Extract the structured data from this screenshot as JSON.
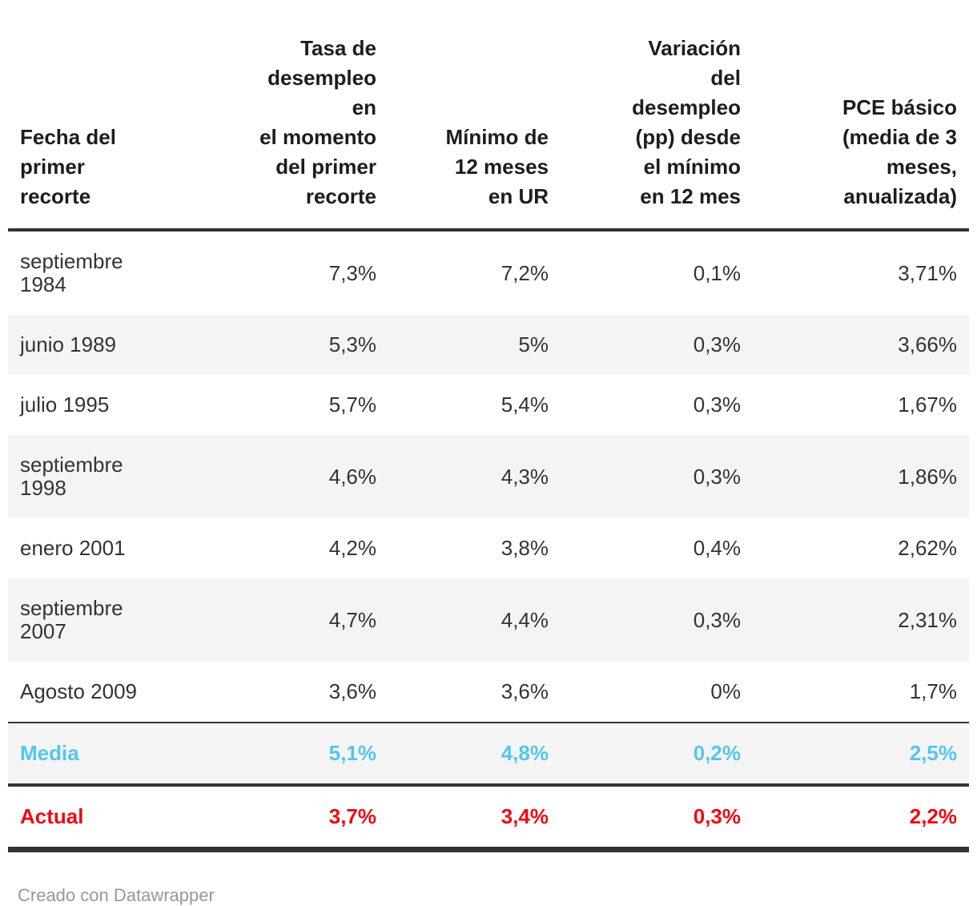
{
  "chart_data": {
    "type": "table",
    "columns": [
      {
        "label": "Fecha del\nprimer\nrecorte",
        "align": "left"
      },
      {
        "label": "Tasa de\ndesempleo en\nel momento\ndel primer\nrecorte",
        "align": "right"
      },
      {
        "label": "Mínimo de\n12 meses\nen UR",
        "align": "right"
      },
      {
        "label": "Variación\ndel\ndesempleo\n(pp) desde\nel mínimo\nen 12 mes",
        "align": "right"
      },
      {
        "label": "PCE básico\n(media de 3\nmeses,\nanualizada)",
        "align": "right"
      }
    ],
    "rows": [
      {
        "label": "septiembre\n1984",
        "values": [
          "7,3%",
          "7,2%",
          "0,1%",
          "3,71%"
        ],
        "style": "normal"
      },
      {
        "label": "junio 1989",
        "values": [
          "5,3%",
          "5%",
          "0,3%",
          "3,66%"
        ],
        "style": "normal"
      },
      {
        "label": "julio 1995",
        "values": [
          "5,7%",
          "5,4%",
          "0,3%",
          "1,67%"
        ],
        "style": "normal"
      },
      {
        "label": "septiembre\n1998",
        "values": [
          "4,6%",
          "4,3%",
          "0,3%",
          "1,86%"
        ],
        "style": "normal"
      },
      {
        "label": "enero 2001",
        "values": [
          "4,2%",
          "3,8%",
          "0,4%",
          "2,62%"
        ],
        "style": "normal"
      },
      {
        "label": "septiembre\n2007",
        "values": [
          "4,7%",
          "4,4%",
          "0,3%",
          "2,31%"
        ],
        "style": "normal"
      },
      {
        "label": "Agosto 2009",
        "values": [
          "3,6%",
          "3,6%",
          "0%",
          "1,7%"
        ],
        "style": "normal"
      },
      {
        "label": "Media",
        "values": [
          "5,1%",
          "4,8%",
          "0,2%",
          "2,5%"
        ],
        "style": "media"
      },
      {
        "label": "Actual",
        "values": [
          "3,7%",
          "3,4%",
          "0,3%",
          "2,2%"
        ],
        "style": "actual"
      }
    ],
    "layout_hints": {
      "zebra_striping": true,
      "value_alignment": "right",
      "header_alignment": "bottom"
    }
  },
  "colors": {
    "media_row": "#55c5ee",
    "actual_row": "#ee0a14",
    "rule": "#333333",
    "zebra": "#f4f4f4",
    "header_text": "#1d1d1d",
    "body_text": "#333333",
    "credit_text": "#979797"
  },
  "footer": {
    "credit": "Creado con Datawrapper"
  }
}
